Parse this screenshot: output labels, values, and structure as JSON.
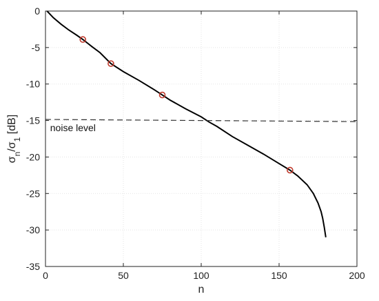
{
  "chart_data": {
    "type": "line",
    "title": "",
    "xlabel": "n",
    "ylabel_parts": [
      "σ",
      "n",
      "/σ",
      "1",
      " [dB]"
    ],
    "xlim": [
      0,
      200
    ],
    "ylim": [
      -35,
      0
    ],
    "xticks": [
      0,
      50,
      100,
      150,
      200
    ],
    "yticks": [
      0,
      -5,
      -10,
      -15,
      -20,
      -25,
      -30,
      -35
    ],
    "grid": true,
    "series": [
      {
        "style": "solid",
        "color": "#000000",
        "x": [
          1,
          5,
          10,
          15,
          20,
          24,
          30,
          35,
          42,
          50,
          60,
          70,
          75,
          80,
          90,
          100,
          105,
          110,
          120,
          130,
          140,
          150,
          157,
          162,
          168,
          172,
          175,
          177,
          178,
          179,
          180
        ],
        "y": [
          0,
          -0.9,
          -1.8,
          -2.6,
          -3.3,
          -3.9,
          -4.9,
          -5.7,
          -7.2,
          -8.3,
          -9.5,
          -10.8,
          -11.5,
          -12.2,
          -13.4,
          -14.5,
          -15.2,
          -15.8,
          -17.2,
          -18.4,
          -19.6,
          -20.9,
          -21.8,
          -22.6,
          -23.8,
          -25.0,
          -26.3,
          -27.5,
          -28.4,
          -29.6,
          -31.0
        ]
      },
      {
        "style": "dashed",
        "color": "#333333",
        "x": [
          0,
          200
        ],
        "y": [
          -14.85,
          -15.15
        ]
      }
    ],
    "markers": {
      "color": "#c0392b",
      "points": [
        {
          "x": 24,
          "y": -3.9
        },
        {
          "x": 42,
          "y": -7.2
        },
        {
          "x": 75,
          "y": -11.5
        },
        {
          "x": 157,
          "y": -21.8
        }
      ]
    },
    "annotations": [
      {
        "text": "noise level",
        "x": 3,
        "y": -16.0
      }
    ]
  }
}
